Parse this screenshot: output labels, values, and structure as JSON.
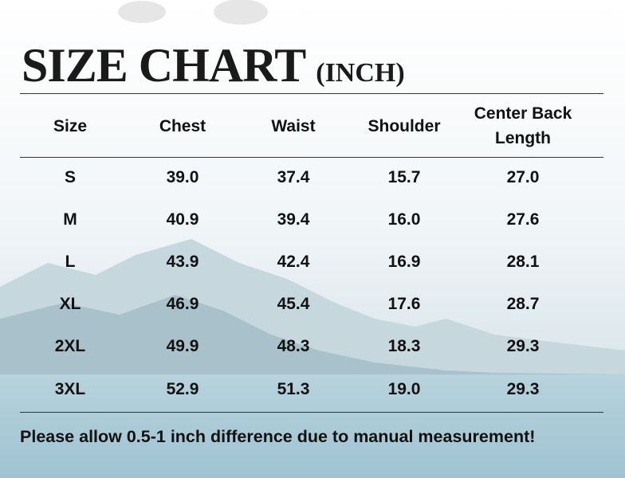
{
  "title": {
    "main": "SIZE CHART",
    "unit": "(INCH)"
  },
  "table": {
    "header": [
      "Size",
      "Chest",
      "Waist",
      "Shoulder",
      "Center Back Length"
    ],
    "rows": [
      [
        "S",
        "39.0",
        "37.4",
        "15.7",
        "27.0"
      ],
      [
        "M",
        "40.9",
        "39.4",
        "16.0",
        "27.6"
      ],
      [
        "L",
        "43.9",
        "42.4",
        "16.9",
        "28.1"
      ],
      [
        "XL",
        "46.9",
        "45.4",
        "17.6",
        "28.7"
      ],
      [
        "2XL",
        "49.9",
        "48.3",
        "18.3",
        "29.3"
      ],
      [
        "3XL",
        "52.9",
        "51.3",
        "19.0",
        "29.3"
      ]
    ]
  },
  "note": "Please allow 0.5-1 inch difference due to manual measurement!"
}
